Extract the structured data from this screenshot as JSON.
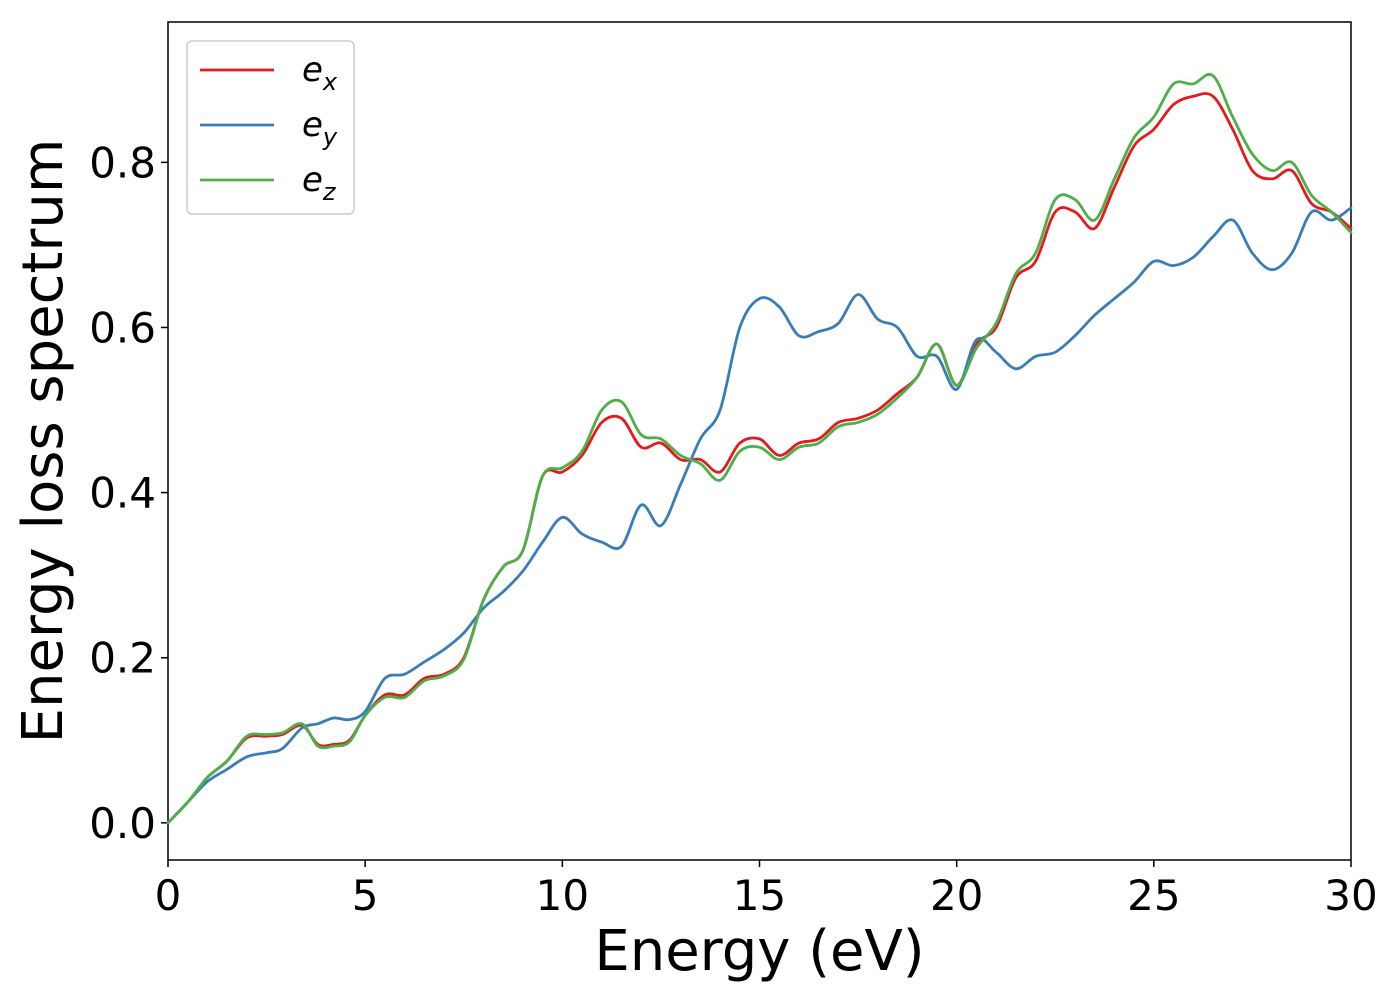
{
  "chart_data": {
    "type": "line",
    "xlabel": "Energy (eV)",
    "ylabel": "Energy loss spectrum",
    "xlim": [
      0,
      30
    ],
    "ylim": [
      -0.045,
      0.97
    ],
    "xticks": [
      "0",
      "5",
      "10",
      "15",
      "20",
      "25",
      "30"
    ],
    "yticks": [
      "0.0",
      "0.2",
      "0.4",
      "0.6",
      "0.8"
    ],
    "grid": false,
    "legend_position": "top-left",
    "series": [
      {
        "name": "e_x",
        "label_base": "e",
        "label_sub": "x",
        "color": "#e41a1c",
        "x": [
          0,
          0.5,
          1,
          1.5,
          2,
          2.5,
          2.9,
          3.4,
          3.8,
          4.2,
          4.6,
          5,
          5.5,
          6,
          6.5,
          7,
          7.5,
          8,
          8.5,
          9,
          9.5,
          10,
          10.5,
          11,
          11.5,
          12,
          12.5,
          13,
          13.5,
          14,
          14.5,
          15,
          15.5,
          16,
          16.5,
          17,
          17.5,
          18,
          18.5,
          19,
          19.5,
          20,
          20.5,
          21,
          21.5,
          22,
          22.5,
          23,
          23.5,
          24,
          24.5,
          25,
          25.5,
          26,
          26.5,
          27,
          27.5,
          28,
          28.5,
          29,
          29.5,
          30
        ],
        "y": [
          0,
          0.025,
          0.055,
          0.075,
          0.103,
          0.105,
          0.107,
          0.118,
          0.095,
          0.095,
          0.1,
          0.13,
          0.155,
          0.155,
          0.175,
          0.18,
          0.2,
          0.27,
          0.31,
          0.33,
          0.42,
          0.425,
          0.445,
          0.485,
          0.49,
          0.455,
          0.46,
          0.44,
          0.44,
          0.425,
          0.46,
          0.465,
          0.445,
          0.46,
          0.465,
          0.485,
          0.49,
          0.5,
          0.52,
          0.54,
          0.58,
          0.53,
          0.58,
          0.6,
          0.66,
          0.68,
          0.74,
          0.74,
          0.72,
          0.77,
          0.82,
          0.84,
          0.87,
          0.88,
          0.88,
          0.84,
          0.79,
          0.78,
          0.79,
          0.75,
          0.74,
          0.72
        ]
      },
      {
        "name": "e_y",
        "label_base": "e",
        "label_sub": "y",
        "color": "#377eb8",
        "x": [
          0,
          0.5,
          1,
          1.5,
          2,
          2.5,
          2.9,
          3.4,
          3.8,
          4.2,
          4.6,
          5,
          5.5,
          6,
          6.5,
          7,
          7.5,
          8,
          8.5,
          9,
          9.5,
          10,
          10.5,
          11,
          11.5,
          12,
          12.5,
          13,
          13.5,
          14,
          14.5,
          15,
          15.5,
          16,
          16.5,
          17,
          17.5,
          18,
          18.5,
          19,
          19.5,
          20,
          20.5,
          21,
          21.5,
          22,
          22.5,
          23,
          23.5,
          24,
          24.5,
          25,
          25.5,
          26,
          26.5,
          27,
          27.5,
          28,
          28.5,
          29,
          29.5,
          30
        ],
        "y": [
          0,
          0.025,
          0.05,
          0.065,
          0.08,
          0.085,
          0.09,
          0.115,
          0.12,
          0.127,
          0.125,
          0.135,
          0.175,
          0.18,
          0.195,
          0.21,
          0.23,
          0.26,
          0.28,
          0.305,
          0.34,
          0.37,
          0.35,
          0.34,
          0.335,
          0.385,
          0.36,
          0.41,
          0.465,
          0.5,
          0.6,
          0.635,
          0.625,
          0.59,
          0.595,
          0.605,
          0.64,
          0.61,
          0.6,
          0.565,
          0.565,
          0.525,
          0.585,
          0.57,
          0.55,
          0.565,
          0.57,
          0.59,
          0.615,
          0.635,
          0.655,
          0.68,
          0.675,
          0.685,
          0.71,
          0.73,
          0.69,
          0.67,
          0.69,
          0.74,
          0.73,
          0.745
        ]
      },
      {
        "name": "e_z",
        "label_base": "e",
        "label_sub": "z",
        "color": "#4daf4a",
        "x": [
          0,
          0.5,
          1,
          1.5,
          2,
          2.5,
          2.9,
          3.4,
          3.8,
          4.2,
          4.6,
          5,
          5.5,
          6,
          6.5,
          7,
          7.5,
          8,
          8.5,
          9,
          9.5,
          10,
          10.5,
          11,
          11.5,
          12,
          12.5,
          13,
          13.5,
          14,
          14.5,
          15,
          15.5,
          16,
          16.5,
          17,
          17.5,
          18,
          18.5,
          19,
          19.5,
          20,
          20.5,
          21,
          21.5,
          22,
          22.5,
          23,
          23.5,
          24,
          24.5,
          25,
          25.5,
          26,
          26.5,
          27,
          27.5,
          28,
          28.5,
          29,
          29.5,
          30
        ],
        "y": [
          0,
          0.025,
          0.055,
          0.075,
          0.105,
          0.107,
          0.109,
          0.12,
          0.093,
          0.093,
          0.098,
          0.13,
          0.152,
          0.152,
          0.172,
          0.178,
          0.198,
          0.27,
          0.31,
          0.33,
          0.42,
          0.43,
          0.45,
          0.5,
          0.51,
          0.47,
          0.465,
          0.445,
          0.435,
          0.415,
          0.45,
          0.455,
          0.44,
          0.455,
          0.46,
          0.48,
          0.485,
          0.495,
          0.515,
          0.54,
          0.58,
          0.53,
          0.575,
          0.605,
          0.665,
          0.69,
          0.755,
          0.755,
          0.73,
          0.78,
          0.83,
          0.855,
          0.895,
          0.895,
          0.905,
          0.855,
          0.81,
          0.79,
          0.8,
          0.76,
          0.74,
          0.715
        ]
      }
    ]
  }
}
